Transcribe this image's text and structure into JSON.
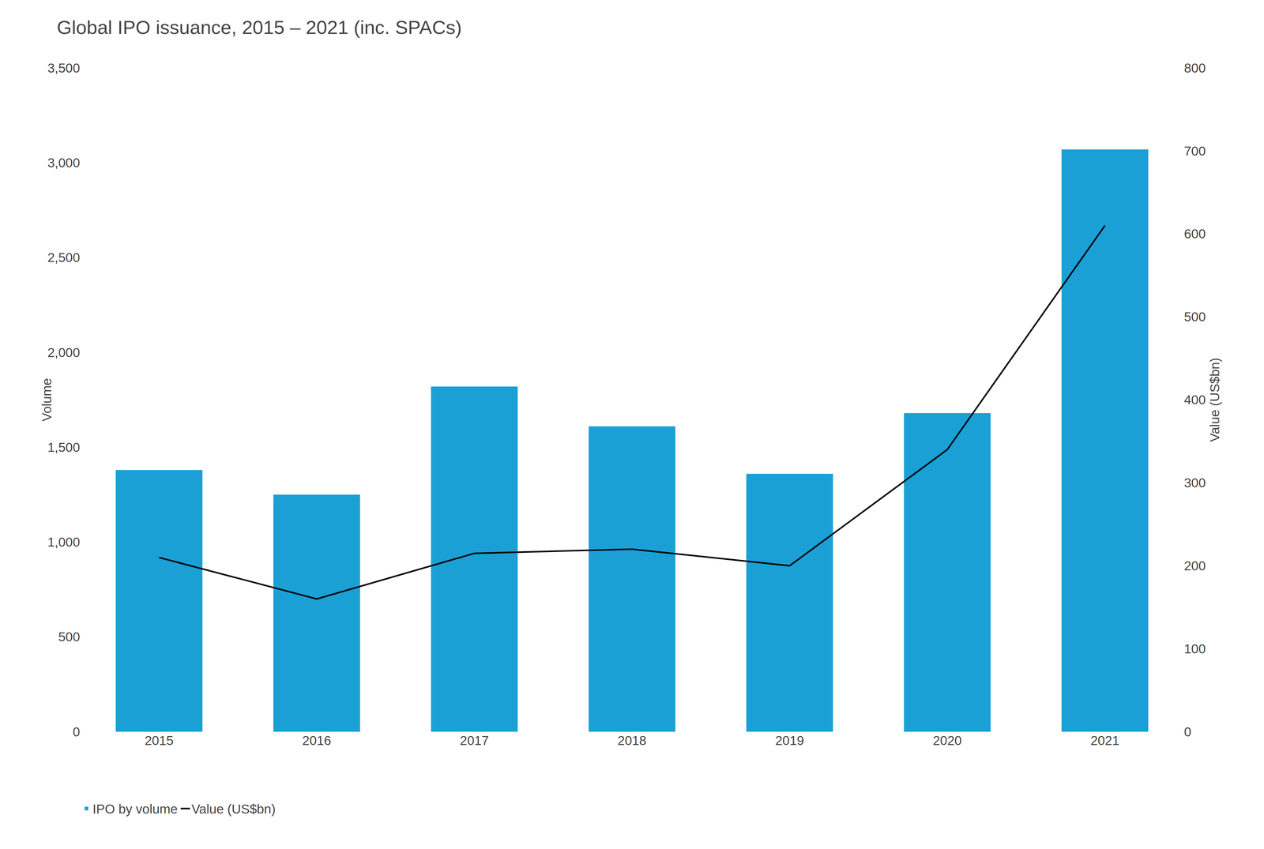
{
  "chart_data": {
    "type": "bar",
    "title": "Global IPO issuance, 2015 – 2021 (inc. SPACs)",
    "categories": [
      "2015",
      "2016",
      "2017",
      "2018",
      "2019",
      "2020",
      "2021"
    ],
    "y_label": "Volume",
    "y2_label": "Value (US$bn)",
    "series": [
      {
        "name": "IPO by volume",
        "type": "bar",
        "color": "#1ba0d5",
        "values": [
          1380,
          1250,
          1820,
          1610,
          1360,
          1680,
          3070
        ]
      },
      {
        "name": "Value (US$bn)",
        "type": "line",
        "color": "#000000",
        "axis": "y2",
        "values": [
          210,
          160,
          215,
          220,
          200,
          340,
          610
        ]
      }
    ],
    "ylim": [
      0,
      3500
    ],
    "yticks": [
      0,
      500,
      {
        "value": 1000,
        "label": "1,000"
      },
      {
        "value": 1500,
        "label": "1,500"
      },
      {
        "value": 2000,
        "label": "2,000"
      },
      {
        "value": 2500,
        "label": "2,500"
      },
      {
        "value": 3000,
        "label": "3,000"
      },
      {
        "value": 3500,
        "label": "3,500"
      }
    ],
    "y2lim": [
      0,
      800
    ],
    "y2ticks": [
      0,
      100,
      200,
      300,
      400,
      500,
      600,
      700,
      800
    ],
    "grid": false,
    "legend": "bottom"
  }
}
